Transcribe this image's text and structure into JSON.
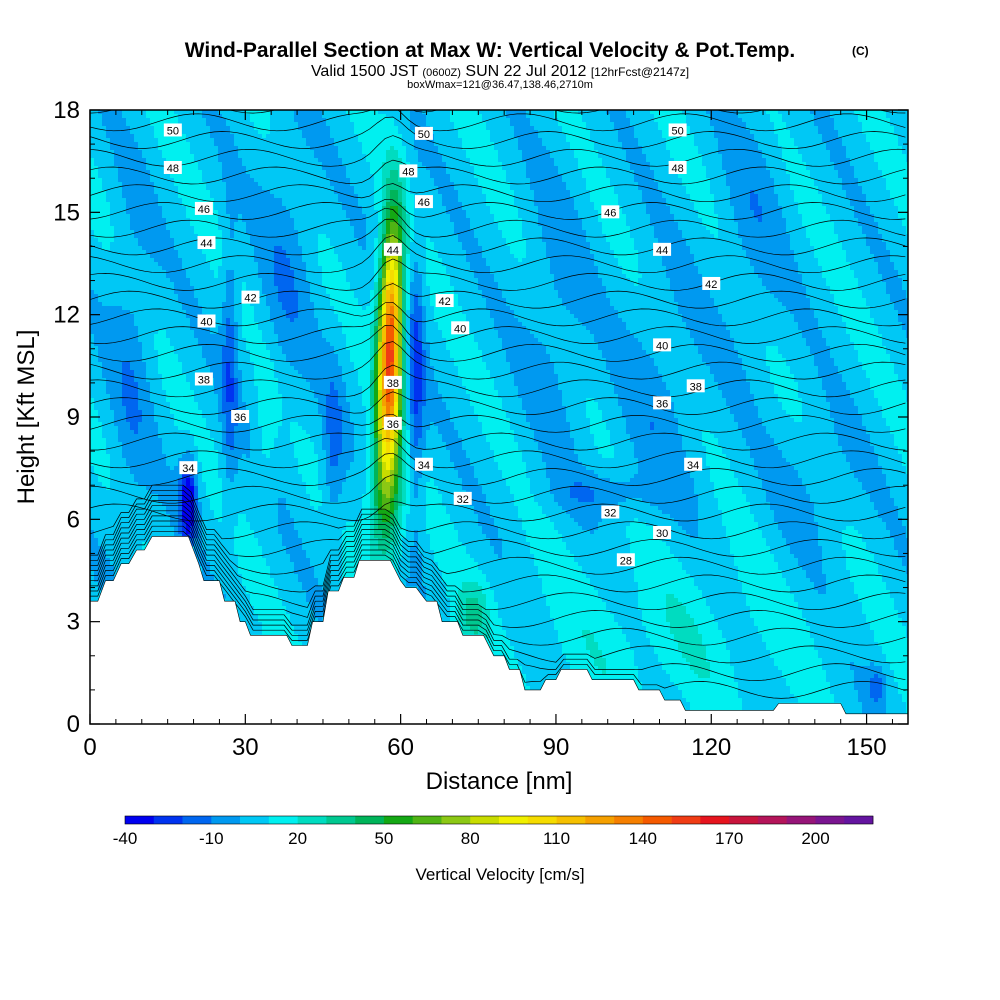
{
  "chart_data": {
    "type": "heatmap",
    "title": "Wind-Parallel Section at Max W: Vertical Velocity & Pot.Temp.",
    "title_mark": "(C)",
    "subtitle_prefix": "Valid 1500 JST",
    "subtitle_zulu": "(0600Z)",
    "subtitle_main": "SUN 22 Jul 2012",
    "subtitle_fcst": "[12hrFcst@2147z]",
    "subtitle2": "boxWmax=121@36.47,138.46,2710m",
    "xlabel": "Distance [nm]",
    "ylabel": "Height [Kft MSL]",
    "xlim": [
      0,
      158
    ],
    "ylim": [
      0,
      18
    ],
    "xticks": [
      0,
      30,
      60,
      90,
      120,
      150
    ],
    "yticks": [
      0,
      3,
      6,
      9,
      12,
      15,
      18
    ],
    "colorbar": {
      "label": "Vertical Velocity [cm/s]",
      "tick_labels": [
        "-40",
        "-10",
        "20",
        "50",
        "80",
        "110",
        "140",
        "170",
        "200"
      ],
      "tick_values": [
        -40,
        -10,
        20,
        50,
        80,
        110,
        140,
        170,
        200
      ],
      "levels": [
        -40,
        -30,
        -20,
        -10,
        0,
        10,
        20,
        30,
        40,
        50,
        60,
        70,
        80,
        90,
        100,
        110,
        120,
        130,
        140,
        150,
        160,
        170,
        180,
        190,
        200,
        210,
        220
      ],
      "colors": [
        "#0000f0",
        "#0033f0",
        "#0066f0",
        "#0099f0",
        "#00c8f5",
        "#00f0f0",
        "#00dcc0",
        "#00c890",
        "#00b45a",
        "#14a814",
        "#50b414",
        "#8cc814",
        "#c8dc00",
        "#f0f000",
        "#f5dc00",
        "#f5c000",
        "#f5a000",
        "#f57f00",
        "#f55a00",
        "#f03c14",
        "#e6141e",
        "#c8143c",
        "#b4145a",
        "#961478",
        "#7a1490",
        "#6414a0"
      ]
    },
    "updraft_max": {
      "x": 58,
      "y": 12.5,
      "w": 121
    },
    "terrain": [
      [
        0,
        3.6
      ],
      [
        1.5,
        3.6
      ],
      [
        3,
        4.2
      ],
      [
        4.5,
        4.2
      ],
      [
        6,
        4.7
      ],
      [
        7.5,
        4.7
      ],
      [
        9,
        5.1
      ],
      [
        10.5,
        5.1
      ],
      [
        12,
        5.5
      ],
      [
        19,
        5.5
      ],
      [
        21,
        4.7
      ],
      [
        22,
        4.2
      ],
      [
        25,
        4.2
      ],
      [
        26,
        3.6
      ],
      [
        28,
        3.6
      ],
      [
        29,
        3.0
      ],
      [
        30,
        3.0
      ],
      [
        31,
        2.6
      ],
      [
        38,
        2.6
      ],
      [
        39,
        2.3
      ],
      [
        42,
        2.3
      ],
      [
        43,
        3.0
      ],
      [
        45,
        3.0
      ],
      [
        46,
        3.9
      ],
      [
        48,
        3.9
      ],
      [
        49,
        4.3
      ],
      [
        51,
        4.3
      ],
      [
        52,
        4.8
      ],
      [
        58,
        4.8
      ],
      [
        60,
        4.2
      ],
      [
        61,
        4.0
      ],
      [
        63,
        4.0
      ],
      [
        64,
        3.8
      ],
      [
        65,
        3.6
      ],
      [
        67,
        3.6
      ],
      [
        68,
        3.0
      ],
      [
        71,
        3.0
      ],
      [
        72,
        2.6
      ],
      [
        76,
        2.6
      ],
      [
        78,
        2.0
      ],
      [
        80,
        2.0
      ],
      [
        81,
        1.6
      ],
      [
        83,
        1.6
      ],
      [
        84,
        1.0
      ],
      [
        87,
        1.0
      ],
      [
        88,
        1.3
      ],
      [
        90,
        1.3
      ],
      [
        91,
        1.6
      ],
      [
        96,
        1.6
      ],
      [
        97,
        1.3
      ],
      [
        105,
        1.3
      ],
      [
        106,
        1.0
      ],
      [
        110,
        1.0
      ],
      [
        111,
        0.7
      ],
      [
        114,
        0.7
      ],
      [
        115,
        0.4
      ],
      [
        132,
        0.4
      ],
      [
        133,
        0.6
      ],
      [
        145,
        0.6
      ],
      [
        146,
        0.3
      ],
      [
        158,
        0.3
      ]
    ],
    "contour_labels": [
      {
        "text": "50",
        "x": 16,
        "y": 17.4
      },
      {
        "text": "48",
        "x": 16,
        "y": 16.3
      },
      {
        "text": "46",
        "x": 22,
        "y": 15.1
      },
      {
        "text": "44",
        "x": 22.5,
        "y": 14.1
      },
      {
        "text": "42",
        "x": 31,
        "y": 12.5
      },
      {
        "text": "40",
        "x": 22.5,
        "y": 11.8
      },
      {
        "text": "38",
        "x": 22,
        "y": 10.1
      },
      {
        "text": "36",
        "x": 29,
        "y": 9.0
      },
      {
        "text": "34",
        "x": 19,
        "y": 7.5
      },
      {
        "text": "50",
        "x": 64.5,
        "y": 17.3
      },
      {
        "text": "48",
        "x": 61.5,
        "y": 16.2
      },
      {
        "text": "46",
        "x": 64.5,
        "y": 15.3
      },
      {
        "text": "44",
        "x": 58.5,
        "y": 13.9
      },
      {
        "text": "42",
        "x": 68.5,
        "y": 12.4
      },
      {
        "text": "40",
        "x": 71.5,
        "y": 11.6
      },
      {
        "text": "38",
        "x": 58.5,
        "y": 10.0
      },
      {
        "text": "36",
        "x": 58.5,
        "y": 8.8
      },
      {
        "text": "34",
        "x": 64.5,
        "y": 7.6
      },
      {
        "text": "32",
        "x": 72,
        "y": 6.6
      },
      {
        "text": "50",
        "x": 113.5,
        "y": 17.4
      },
      {
        "text": "48",
        "x": 113.5,
        "y": 16.3
      },
      {
        "text": "46",
        "x": 100.5,
        "y": 15.0
      },
      {
        "text": "44",
        "x": 110.5,
        "y": 13.9
      },
      {
        "text": "42",
        "x": 120,
        "y": 12.9
      },
      {
        "text": "40",
        "x": 110.5,
        "y": 11.1
      },
      {
        "text": "38",
        "x": 117,
        "y": 9.9
      },
      {
        "text": "36",
        "x": 110.5,
        "y": 9.4
      },
      {
        "text": "34",
        "x": 116.5,
        "y": 7.6
      },
      {
        "text": "32",
        "x": 100.5,
        "y": 6.2
      },
      {
        "text": "30",
        "x": 110.5,
        "y": 5.6
      },
      {
        "text": "28",
        "x": 103.5,
        "y": 4.8
      }
    ]
  }
}
